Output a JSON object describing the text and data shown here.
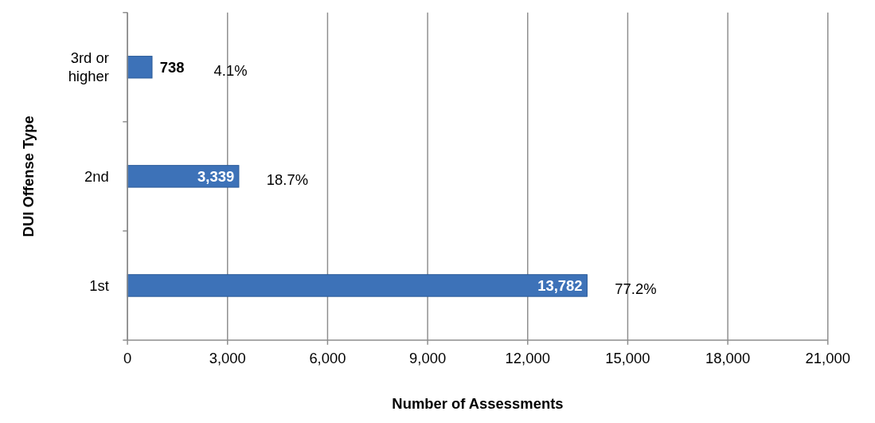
{
  "chart_data": {
    "type": "bar",
    "orientation": "horizontal",
    "categories": [
      "3rd or higher",
      "2nd",
      "1st"
    ],
    "values": [
      738,
      3339,
      13782
    ],
    "value_labels": [
      "738",
      "3,339",
      "13,782"
    ],
    "color": "#3d72b8",
    "xlabel": "Number of Assessments",
    "ylabel": "DUI Offense Type",
    "xlim": [
      0,
      21000
    ],
    "xticks": [
      {
        "value": 0,
        "label": "0"
      },
      {
        "value": 3000,
        "label": "3,000"
      },
      {
        "value": 6000,
        "label": "6,000"
      },
      {
        "value": 9000,
        "label": "9,000"
      },
      {
        "value": 12000,
        "label": "12,000"
      },
      {
        "value": 15000,
        "label": "15,000"
      },
      {
        "value": 18000,
        "label": "18,000"
      },
      {
        "value": 21000,
        "label": "21,000"
      }
    ],
    "grid": "x",
    "annotations": [
      "4.1%",
      "18.7%",
      "77.2%"
    ]
  }
}
